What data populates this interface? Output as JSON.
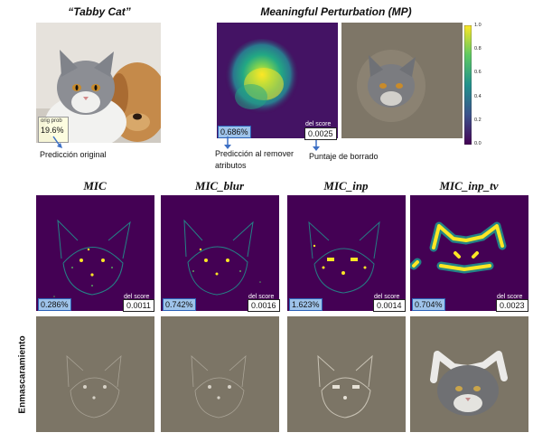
{
  "top": {
    "original_title": "“Tabby Cat”",
    "mp_title": "Meaningful Perturbation (MP)",
    "orig_prob_label": "orig prob",
    "orig_prob_value": "19.6%",
    "mp_pred_value": "0.686%",
    "mp_del_label": "del score",
    "mp_del_value": "0.0025",
    "note_original": "Predicción original",
    "note_remove_1": "Predicción al remover",
    "note_remove_2": "atributos",
    "note_del": "Puntaje de borrado"
  },
  "colorbar": {
    "ticks": [
      "1.0",
      "0.8",
      "0.6",
      "0.4",
      "0.2",
      "0.0"
    ],
    "colors": [
      "#fde725",
      "#5ec962",
      "#21918c",
      "#3b528b",
      "#440154"
    ]
  },
  "side_label": "Enmascaramiento",
  "columns": [
    {
      "title": "MIC",
      "pred": "0.286%",
      "del_label": "del score",
      "del": "0.0011"
    },
    {
      "title": "MIC_blur",
      "pred": "0.742%",
      "del_label": "del score",
      "del": "0.0016"
    },
    {
      "title": "MIC_inp",
      "pred": "1.623%",
      "del_label": "del score",
      "del": "0.0014"
    },
    {
      "title": "MIC_inp_tv",
      "pred": "0.704%",
      "del_label": "del score",
      "del": "0.0023"
    }
  ]
}
